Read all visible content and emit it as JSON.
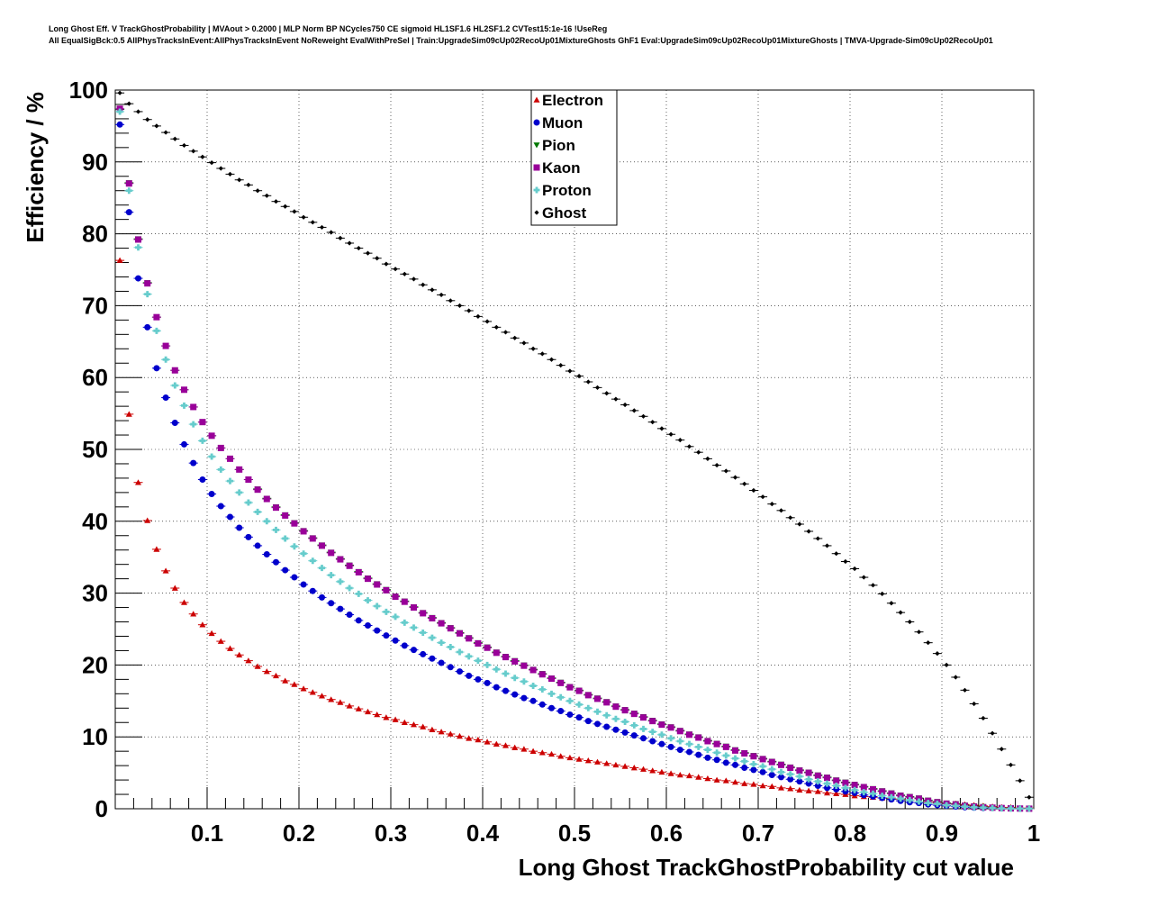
{
  "header": {
    "title_line1": "Long Ghost Eff. V TrackGhostProbability | MVAout > 0.2000 | MLP Norm BP NCycles750 CE sigmoid HL1SF1.6 HL2SF1.2 CVTest15:1e-16 !UseReg",
    "title_line2": "All EqualSigBck:0.5 AllPhysTracksInEvent:AllPhysTracksInEvent NoReweight EvalWithPreSel | Train:UpgradeSim09cUp02RecoUp01MixtureGhosts GhF1 Eval:UpgradeSim09cUp02RecoUp01MixtureGhosts | TMVA-Upgrade-Sim09cUp02RecoUp01"
  },
  "chart_data": {
    "type": "scatter",
    "xlabel": "Long Ghost TrackGhostProbability cut value",
    "ylabel": "Efficiency / %",
    "xlim": [
      0,
      1
    ],
    "ylim": [
      0,
      100
    ],
    "x_ticks": [
      "0.1",
      "0.2",
      "0.3",
      "0.4",
      "0.5",
      "0.6",
      "0.7",
      "0.8",
      "0.9",
      "1"
    ],
    "y_ticks": [
      "0",
      "10",
      "20",
      "30",
      "40",
      "50",
      "60",
      "70",
      "80",
      "90",
      "100"
    ],
    "grid": true,
    "legend_position": "top-center",
    "x": [
      0.005,
      0.015,
      0.025,
      0.035,
      0.045,
      0.055,
      0.065,
      0.075,
      0.085,
      0.095,
      0.105,
      0.115,
      0.125,
      0.135,
      0.145,
      0.155,
      0.165,
      0.175,
      0.185,
      0.195,
      0.205,
      0.215,
      0.225,
      0.235,
      0.245,
      0.255,
      0.265,
      0.275,
      0.285,
      0.295,
      0.305,
      0.315,
      0.325,
      0.335,
      0.345,
      0.355,
      0.365,
      0.375,
      0.385,
      0.395,
      0.405,
      0.415,
      0.425,
      0.435,
      0.445,
      0.455,
      0.465,
      0.475,
      0.485,
      0.495,
      0.505,
      0.515,
      0.525,
      0.535,
      0.545,
      0.555,
      0.565,
      0.575,
      0.585,
      0.595,
      0.605,
      0.615,
      0.625,
      0.635,
      0.645,
      0.655,
      0.665,
      0.675,
      0.685,
      0.695,
      0.705,
      0.715,
      0.725,
      0.735,
      0.745,
      0.755,
      0.765,
      0.775,
      0.785,
      0.795,
      0.805,
      0.815,
      0.825,
      0.835,
      0.845,
      0.855,
      0.865,
      0.875,
      0.885,
      0.895,
      0.905,
      0.915,
      0.925,
      0.935,
      0.945,
      0.955,
      0.965,
      0.975,
      0.985,
      0.995
    ],
    "series": [
      {
        "name": "Electron",
        "color": "#cc0000",
        "marker": "triangle-up",
        "values": [
          76.3,
          54.9,
          45.4,
          40.1,
          36.1,
          33.1,
          30.7,
          28.7,
          27.1,
          25.6,
          24.4,
          23.3,
          22.3,
          21.4,
          20.6,
          19.8,
          19.1,
          18.5,
          17.8,
          17.3,
          16.7,
          16.2,
          15.7,
          15.2,
          14.8,
          14.3,
          13.9,
          13.5,
          13.1,
          12.7,
          12.4,
          12.0,
          11.7,
          11.4,
          11.0,
          10.7,
          10.4,
          10.1,
          9.8,
          9.6,
          9.3,
          9.0,
          8.8,
          8.5,
          8.3,
          8.0,
          7.8,
          7.6,
          7.3,
          7.1,
          6.9,
          6.7,
          6.5,
          6.3,
          6.1,
          5.9,
          5.7,
          5.5,
          5.3,
          5.1,
          4.9,
          4.7,
          4.6,
          4.4,
          4.2,
          4.0,
          3.9,
          3.7,
          3.5,
          3.4,
          3.2,
          3.1,
          2.9,
          2.8,
          2.6,
          2.5,
          2.4,
          2.2,
          2.1,
          2.0,
          1.8,
          1.7,
          1.6,
          1.5,
          1.4,
          1.3,
          1.2,
          1.0,
          0.9,
          0.8,
          0.7,
          0.7,
          0.6,
          0.5,
          0.4,
          0.3,
          0.2,
          0.2,
          0.1,
          0.1
        ]
      },
      {
        "name": "Muon",
        "color": "#0000cc",
        "marker": "circle",
        "values": [
          95.2,
          83.0,
          73.8,
          67.0,
          61.3,
          57.2,
          53.7,
          50.7,
          48.1,
          45.8,
          43.8,
          42.1,
          40.6,
          39.1,
          37.8,
          36.6,
          35.4,
          34.3,
          33.2,
          32.2,
          31.2,
          30.3,
          29.4,
          28.6,
          27.8,
          27.0,
          26.2,
          25.5,
          24.8,
          24.1,
          23.4,
          22.7,
          22.1,
          21.5,
          20.9,
          20.3,
          19.7,
          19.1,
          18.5,
          18.0,
          17.5,
          16.9,
          16.4,
          15.9,
          15.4,
          15.0,
          14.5,
          14.0,
          13.6,
          13.1,
          12.7,
          12.2,
          11.8,
          11.4,
          11.0,
          10.6,
          10.2,
          9.8,
          9.4,
          9.0,
          8.6,
          8.2,
          7.9,
          7.5,
          7.1,
          6.8,
          6.4,
          6.1,
          5.7,
          5.4,
          5.1,
          4.7,
          4.4,
          4.1,
          3.8,
          3.5,
          3.2,
          2.9,
          2.7,
          2.4,
          2.2,
          1.9,
          1.7,
          1.5,
          1.3,
          1.1,
          0.9,
          0.8,
          0.6,
          0.5,
          0.4,
          0.3,
          0.2,
          0.15,
          0.1,
          0.1,
          0.05,
          0.05,
          0.02,
          0.01
        ]
      },
      {
        "name": "Pion",
        "color": "#007700",
        "marker": "triangle-down",
        "values": [
          97.3,
          87.1,
          79.3,
          73.2,
          68.4,
          64.4,
          61.0,
          58.3,
          55.9,
          53.8,
          51.9,
          50.2,
          48.7,
          47.2,
          45.8,
          44.5,
          43.2,
          42.0,
          40.9,
          39.8,
          38.7,
          37.7,
          36.7,
          35.7,
          34.8,
          33.9,
          33.0,
          32.1,
          31.3,
          30.5,
          29.6,
          28.9,
          28.1,
          27.3,
          26.6,
          25.9,
          25.2,
          24.5,
          23.8,
          23.1,
          22.5,
          21.8,
          21.2,
          20.6,
          20.0,
          19.4,
          18.8,
          18.2,
          17.6,
          17.0,
          16.5,
          15.9,
          15.4,
          14.9,
          14.3,
          13.8,
          13.3,
          12.8,
          12.3,
          11.8,
          11.4,
          10.9,
          10.4,
          10.0,
          9.5,
          9.1,
          8.7,
          8.2,
          7.8,
          7.4,
          7.0,
          6.6,
          6.2,
          5.8,
          5.4,
          5.1,
          4.7,
          4.4,
          4.0,
          3.7,
          3.4,
          3.1,
          2.8,
          2.5,
          2.2,
          1.9,
          1.7,
          1.5,
          1.2,
          1.0,
          0.8,
          0.7,
          0.5,
          0.4,
          0.3,
          0.2,
          0.1,
          0.1,
          0.05,
          0.02
        ]
      },
      {
        "name": "Kaon",
        "color": "#990099",
        "marker": "square",
        "values": [
          97.4,
          87.0,
          79.2,
          73.1,
          68.4,
          64.4,
          61.0,
          58.3,
          55.9,
          53.8,
          51.9,
          50.2,
          48.7,
          47.2,
          45.8,
          44.4,
          43.1,
          41.9,
          40.8,
          39.7,
          38.6,
          37.6,
          36.6,
          35.6,
          34.7,
          33.8,
          32.9,
          32.0,
          31.2,
          30.4,
          29.5,
          28.8,
          28.0,
          27.2,
          26.5,
          25.8,
          25.1,
          24.4,
          23.7,
          23.0,
          22.4,
          21.7,
          21.1,
          20.5,
          19.9,
          19.3,
          18.7,
          18.1,
          17.5,
          16.9,
          16.4,
          15.8,
          15.3,
          14.8,
          14.2,
          13.7,
          13.2,
          12.7,
          12.2,
          11.7,
          11.3,
          10.8,
          10.3,
          9.9,
          9.4,
          9.0,
          8.6,
          8.1,
          7.7,
          7.3,
          6.9,
          6.5,
          6.1,
          5.7,
          5.3,
          5.0,
          4.6,
          4.3,
          3.9,
          3.6,
          3.3,
          3.0,
          2.7,
          2.4,
          2.1,
          1.8,
          1.6,
          1.4,
          1.1,
          0.9,
          0.7,
          0.6,
          0.4,
          0.3,
          0.2,
          0.15,
          0.1,
          0.05,
          0.03,
          0.01
        ]
      },
      {
        "name": "Proton",
        "color": "#66cccc",
        "marker": "cross",
        "values": [
          97.0,
          86.0,
          78.1,
          71.6,
          66.5,
          62.5,
          58.9,
          56.1,
          53.5,
          51.2,
          49.0,
          47.2,
          45.6,
          44.0,
          42.6,
          41.3,
          40.0,
          38.8,
          37.6,
          36.5,
          35.5,
          34.5,
          33.5,
          32.5,
          31.6,
          30.7,
          29.9,
          29.0,
          28.2,
          27.4,
          26.7,
          25.9,
          25.2,
          24.5,
          23.8,
          23.1,
          22.5,
          21.8,
          21.2,
          20.6,
          20.0,
          19.4,
          18.8,
          18.2,
          17.7,
          17.1,
          16.6,
          16.0,
          15.5,
          15.0,
          14.5,
          14.0,
          13.5,
          13.0,
          12.5,
          12.1,
          11.6,
          11.1,
          10.7,
          10.3,
          9.8,
          9.4,
          9.0,
          8.6,
          8.2,
          7.8,
          7.4,
          7.0,
          6.6,
          6.2,
          5.9,
          5.5,
          5.1,
          4.8,
          4.5,
          4.1,
          3.8,
          3.5,
          3.2,
          2.9,
          2.6,
          2.3,
          2.1,
          1.8,
          1.6,
          1.4,
          1.2,
          1.0,
          0.8,
          0.7,
          0.5,
          0.4,
          0.3,
          0.2,
          0.15,
          0.1,
          0.05,
          0.03,
          0.02,
          0.01
        ]
      },
      {
        "name": "Ghost",
        "color": "#000000",
        "marker": "diamond",
        "values": [
          99.6,
          98.1,
          97.0,
          95.9,
          95.0,
          94.1,
          93.2,
          92.3,
          91.5,
          90.7,
          89.9,
          89.1,
          88.3,
          87.5,
          86.8,
          86.0,
          85.3,
          84.5,
          83.8,
          83.1,
          82.3,
          81.6,
          80.9,
          80.2,
          79.4,
          78.7,
          78.0,
          77.3,
          76.6,
          75.8,
          75.1,
          74.4,
          73.7,
          72.9,
          72.2,
          71.5,
          70.7,
          70.0,
          69.3,
          68.5,
          67.8,
          67.0,
          66.3,
          65.5,
          64.8,
          64.0,
          63.3,
          62.5,
          61.7,
          60.9,
          60.2,
          59.4,
          58.6,
          57.8,
          57.0,
          56.2,
          55.4,
          54.6,
          53.8,
          52.9,
          52.1,
          51.3,
          50.4,
          49.6,
          48.7,
          47.8,
          47.0,
          46.1,
          45.2,
          44.3,
          43.4,
          42.4,
          41.5,
          40.5,
          39.6,
          38.6,
          37.6,
          36.6,
          35.5,
          34.4,
          33.4,
          32.2,
          31.1,
          29.9,
          28.6,
          27.3,
          26.0,
          24.6,
          23.1,
          21.6,
          20.0,
          18.3,
          16.5,
          14.6,
          12.6,
          10.5,
          8.3,
          6.1,
          3.9,
          1.6
        ]
      }
    ]
  }
}
